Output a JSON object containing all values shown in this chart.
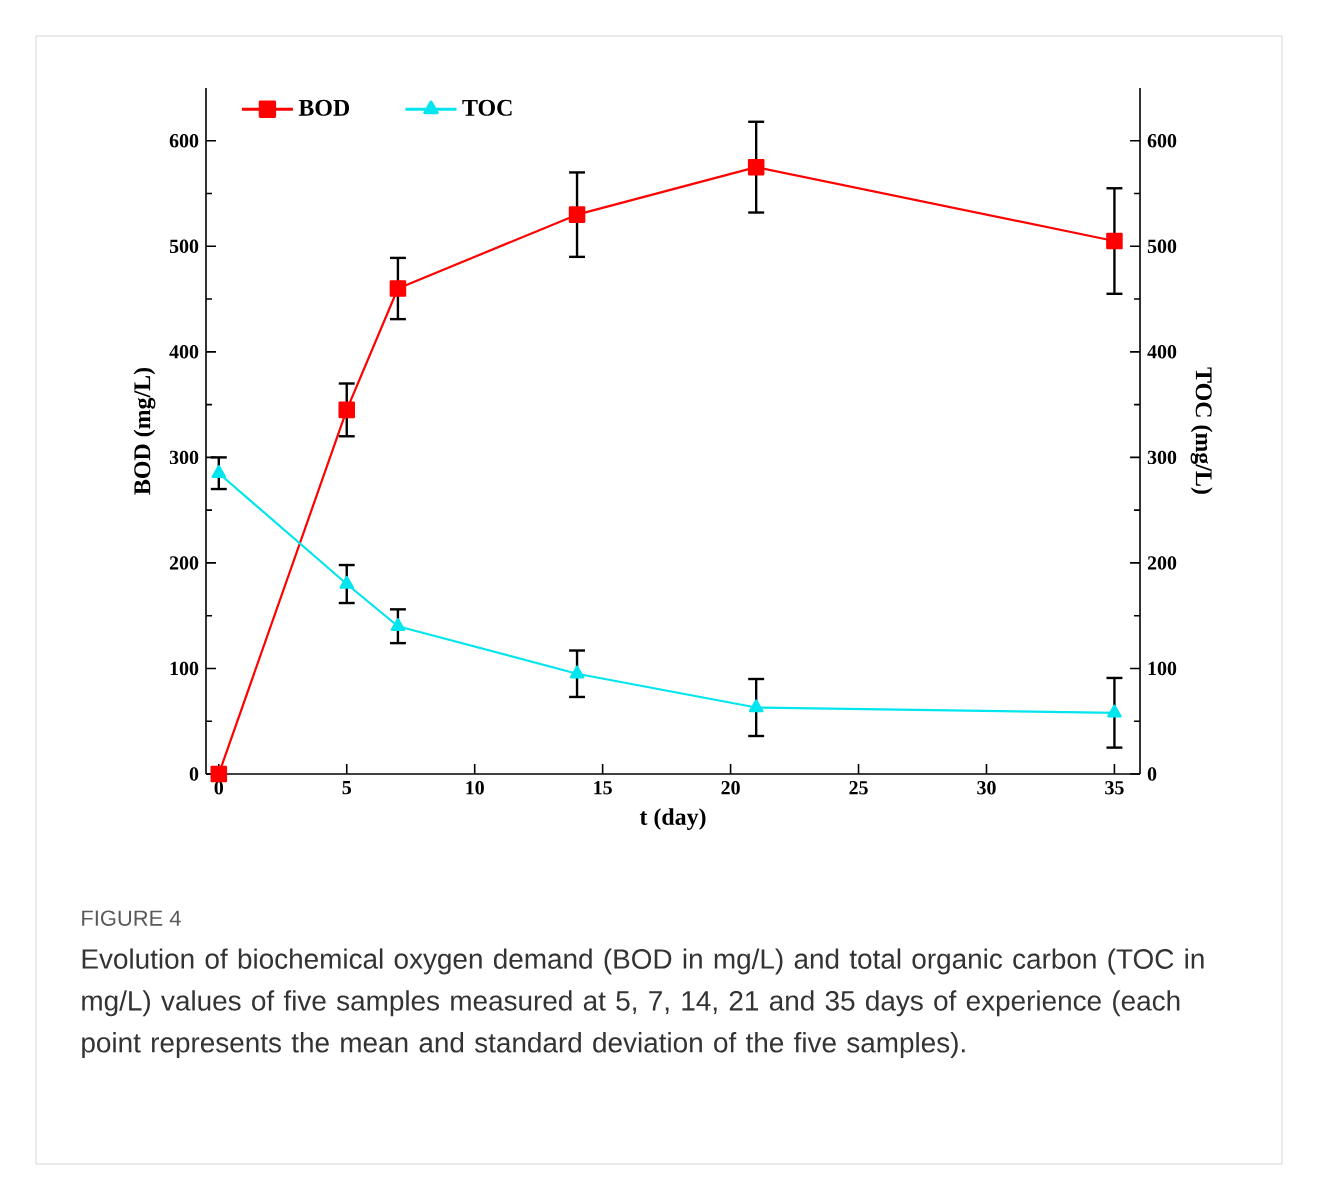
{
  "chart_data": {
    "type": "line",
    "xlabel": "t (day)",
    "ylabel": "BOD (mg/L)",
    "y2label": "TOC (mg/L)",
    "xlim": [
      -0.5,
      36
    ],
    "xticks": [
      0,
      5,
      10,
      15,
      20,
      25,
      30,
      35
    ],
    "ylim": [
      0,
      650
    ],
    "yticks": [
      0,
      100,
      200,
      300,
      400,
      500,
      600
    ],
    "y2lim": [
      0,
      650
    ],
    "y2ticks": [
      0,
      100,
      200,
      300,
      400,
      500,
      600
    ],
    "x": [
      0,
      5,
      7,
      14,
      21,
      35
    ],
    "series": [
      {
        "name": "BOD",
        "color": "#ff0000",
        "marker": "square",
        "values": [
          0,
          345,
          460,
          530,
          575,
          505
        ],
        "errors": [
          null,
          25,
          29,
          40,
          43,
          50
        ]
      },
      {
        "name": "TOC",
        "color": "#00e5ee",
        "marker": "triangle",
        "axis": "y2",
        "values": [
          285,
          180,
          140,
          95,
          63,
          58
        ],
        "errors": [
          15,
          18,
          16,
          22,
          27,
          33
        ]
      }
    ],
    "legend": "top left",
    "grid": false,
    "annotations": [
      "FIGURE 4",
      "Evolution of biochemical oxygen demand (BOD in mg/L) and total organic carbon (TOC in mg/L) values of five samples measured at 5, 7, 14, 21 and 35 days of experience (each point represents the mean and standard deviation of the five samples)."
    ]
  }
}
